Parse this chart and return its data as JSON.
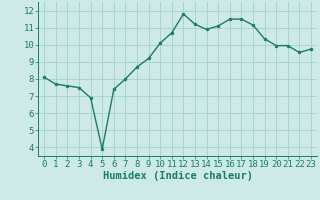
{
  "x": [
    0,
    1,
    2,
    3,
    4,
    5,
    6,
    7,
    8,
    9,
    10,
    11,
    12,
    13,
    14,
    15,
    16,
    17,
    18,
    19,
    20,
    21,
    22,
    23
  ],
  "y": [
    8.1,
    7.7,
    7.6,
    7.5,
    6.9,
    3.9,
    7.4,
    8.0,
    8.7,
    9.2,
    10.1,
    10.7,
    11.8,
    11.2,
    10.9,
    11.1,
    11.5,
    11.5,
    11.15,
    10.35,
    9.95,
    9.95,
    9.55,
    9.75
  ],
  "line_color": "#1b7b6e",
  "marker_color": "#1b7b6e",
  "bg_color": "#cdeae6",
  "grid_color": "#a8d5d0",
  "xlabel": "Humidex (Indice chaleur)",
  "xlim": [
    -0.5,
    23.5
  ],
  "ylim": [
    3.5,
    12.5
  ],
  "yticks": [
    4,
    5,
    6,
    7,
    8,
    9,
    10,
    11,
    12
  ],
  "xticks": [
    0,
    1,
    2,
    3,
    4,
    5,
    6,
    7,
    8,
    9,
    10,
    11,
    12,
    13,
    14,
    15,
    16,
    17,
    18,
    19,
    20,
    21,
    22,
    23
  ],
  "tick_color": "#1b7b6e",
  "label_color": "#1b7b6e",
  "font_size": 6.5,
  "xlabel_fontsize": 7.5,
  "linewidth": 1.0,
  "markersize": 2.0
}
